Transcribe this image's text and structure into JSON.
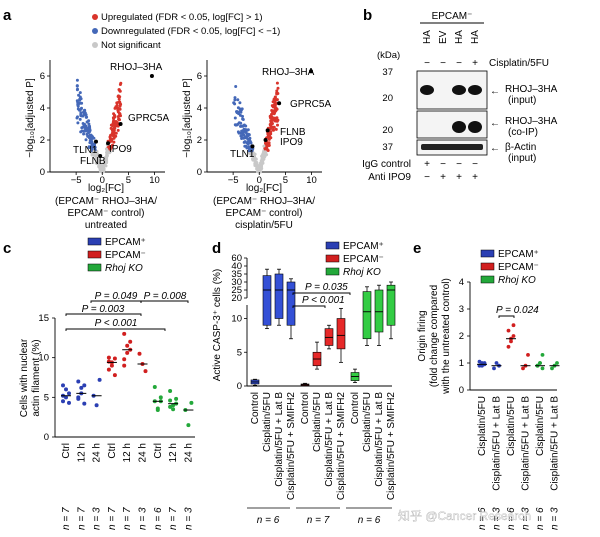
{
  "panels": {
    "a": "a",
    "b": "b",
    "c": "c",
    "d": "d",
    "e": "e"
  },
  "colors": {
    "up": "#d9342b",
    "down": "#4468b8",
    "ns": "#c8c8c8",
    "epcam_pos": "#2b3fb3",
    "epcam_neg": "#d11f1f",
    "rhoj_ko": "#23a83a",
    "box_blue": "#3450d6",
    "box_red": "#e62828",
    "box_green": "#33cc44"
  },
  "panel_a": {
    "legend": {
      "up": "Upregulated (FDR < 0.05, log[FC] > 1)",
      "down": "Downregulated (FDR < 0.05, log[FC] < −1)",
      "ns": "Not significant"
    },
    "ylabel": "−log₁₀[adjusted P]",
    "xlabel": "log₂[FC]",
    "plot1": {
      "xticks": [
        "−5",
        "0",
        "5",
        "10"
      ],
      "yticks": [
        "0",
        "2",
        "4",
        "6"
      ],
      "caption_l1": "(EPCAM⁻ RHOJ–3HA/",
      "caption_l2": "EPCAM⁻ control)",
      "caption_l3": "untreated",
      "gene_labels": {
        "rhoj": "RHOJ–3HA",
        "gprc5a": "GPRC5A",
        "tln1": "TLN1",
        "ipo9": "IPO9",
        "flnb": "FLNB"
      }
    },
    "plot2": {
      "xticks": [
        "−5",
        "0",
        "5",
        "10"
      ],
      "yticks": [
        "0",
        "2",
        "4",
        "6"
      ],
      "caption_l1": "(EPCAM⁻ RHOJ–3HA/",
      "caption_l2": "EPCAM⁻ control)",
      "caption_l3": "cisplatin/5FU",
      "gene_labels": {
        "rhoj": "RHOJ–3HA",
        "gprc5a": "GPRC5A",
        "flnb": "FLNB",
        "ipo9": "IPO9",
        "tln1": "TLN1"
      }
    }
  },
  "panel_b": {
    "header": "EPCAM⁻",
    "lanes": [
      "HA",
      "EV",
      "HA",
      "HA"
    ],
    "cisplatin_signs": [
      "−",
      "−",
      "−",
      "+"
    ],
    "cisplatin_label": "Cisplatin/5FU",
    "kda_label": "(kDa)",
    "mw": {
      "m37a": "37",
      "m20a": "20",
      "m20b": "20",
      "m37b": "37"
    },
    "band_labels": {
      "rhoj_in_1": "RHOJ–3HA",
      "rhoj_in_2": "(input)",
      "rhoj_co_1": "RHOJ–3HA",
      "rhoj_co_2": "(co-IP)",
      "actin_1": "β-Actin",
      "actin_2": "(input)"
    },
    "bottom_rows": [
      {
        "label": "IgG control",
        "signs": [
          "+",
          "−",
          "−",
          "−"
        ]
      },
      {
        "label": "Anti IPO9",
        "signs": [
          "−",
          "+",
          "+",
          "+"
        ]
      }
    ]
  },
  "panel_c": {
    "legend": [
      "EPCAM⁺",
      "EPCAM⁻",
      "Rhoj KO"
    ],
    "ylabel_l1": "Cells with nuclear",
    "ylabel_l2": "actin filament (%)",
    "yticks": [
      "0",
      "5",
      "10",
      "15"
    ],
    "pvals": [
      "P = 0.049",
      "P = 0.008",
      "P = 0.003",
      "P < 0.001"
    ],
    "xcats": [
      "Ctrl",
      "12 h",
      "24 h",
      "Ctrl",
      "12 h",
      "24 h",
      "Ctrl",
      "12 h",
      "24 h"
    ],
    "ns": [
      "n = 7",
      "n = 7",
      "n = 3",
      "n = 7",
      "n = 7",
      "n = 3",
      "n = 6",
      "n = 7",
      "n = 3"
    ]
  },
  "panel_d": {
    "legend": [
      "EPCAM⁺",
      "EPCAM⁻",
      "Rhoj KO"
    ],
    "ylabel": "Active CASP-3⁺ cells (%)",
    "yticks_top": [
      "20",
      "25",
      "30",
      "35",
      "40",
      "60"
    ],
    "yticks_bottom": [
      "0",
      "5",
      "10"
    ],
    "pvals": [
      "P = 0.035",
      "P < 0.001"
    ],
    "xcats": [
      "Control",
      "Cisplatin/5FU",
      "Cisplatin/5FU + Lat B",
      "Cisplatin/5FU + SMIFH2"
    ],
    "ns": [
      "n = 6",
      "n = 7",
      "n = 6"
    ]
  },
  "panel_e": {
    "legend": [
      "EPCAM⁺",
      "EPCAM⁻",
      "Rhoj KO"
    ],
    "ylabel_l1": "Origin firing",
    "ylabel_l2": "(fold change compared",
    "ylabel_l3": "with the untreated control)",
    "yticks": [
      "0",
      "1",
      "2",
      "3",
      "4"
    ],
    "pval": "P = 0.024",
    "xcats": [
      "Cisplatin/5FU",
      "Cisplatin/5FU + Lat B",
      "Cisplatin/5FU",
      "Cisplatin/5FU + Lat B",
      "Cisplatin/5FU",
      "Cisplatin/5FU + Lat B"
    ],
    "ns": [
      "n = 6",
      "n = 3",
      "n = 6",
      "n = 3",
      "n = 6",
      "n = 3"
    ]
  },
  "watermark": "知乎 @Cancer Research",
  "chart_data": [
    {
      "type": "scatter",
      "id": "a1",
      "title": "volcano untreated",
      "xlabel": "log₂[FC]",
      "ylabel": "−log₁₀[adjusted P]",
      "xlim": [
        -10,
        12
      ],
      "ylim": [
        0,
        7
      ],
      "highlighted": [
        {
          "gene": "RHOJ–3HA",
          "x": 9.5,
          "y": 6.0
        },
        {
          "gene": "GPRC5A",
          "x": 3.5,
          "y": 3.0
        },
        {
          "gene": "TLN1",
          "x": -1.2,
          "y": 1.9
        },
        {
          "gene": "IPO9",
          "x": 1.1,
          "y": 1.8
        },
        {
          "gene": "FLNB",
          "x": -0.4,
          "y": 1.0
        }
      ]
    },
    {
      "type": "scatter",
      "id": "a2",
      "title": "volcano cisplatin/5FU",
      "xlabel": "log₂[FC]",
      "ylabel": "−log₁₀[adjusted P]",
      "xlim": [
        -10,
        12
      ],
      "ylim": [
        0,
        7
      ],
      "highlighted": [
        {
          "gene": "RHOJ–3HA",
          "x": 9.9,
          "y": 6.3
        },
        {
          "gene": "GPRC5A",
          "x": 3.8,
          "y": 4.3
        },
        {
          "gene": "FLNB",
          "x": 1.6,
          "y": 2.6
        },
        {
          "gene": "IPO9",
          "x": 1.2,
          "y": 2.0
        },
        {
          "gene": "TLN1",
          "x": -1.3,
          "y": 1.6
        }
      ]
    },
    {
      "type": "scatter",
      "id": "c",
      "ylabel": "Cells with nuclear actin filament (%)",
      "ylim": [
        0,
        15
      ],
      "categories": [
        "Ctrl",
        "12 h",
        "24 h",
        "Ctrl",
        "12 h",
        "24 h",
        "Ctrl",
        "12 h",
        "24 h"
      ],
      "groups": [
        "EPCAM⁺",
        "EPCAM⁺",
        "EPCAM⁺",
        "EPCAM⁻",
        "EPCAM⁻",
        "EPCAM⁻",
        "Rhoj KO",
        "Rhoj KO",
        "Rhoj KO"
      ],
      "points": [
        [
          4.5,
          5.0,
          5.5,
          5.2,
          6.0,
          4.3,
          6.5
        ],
        [
          5.0,
          6.2,
          4.2,
          7.0,
          5.5,
          6.5,
          4.8
        ],
        [
          5.2,
          4.0,
          7.2
        ],
        [
          8.5,
          9.4,
          9.9,
          10.0,
          9.0,
          7.8,
          9.5
        ],
        [
          9.8,
          11.5,
          12.0,
          9.0,
          10.6,
          11.0,
          13.0
        ],
        [
          10.5,
          9.2,
          8.3
        ],
        [
          4.5,
          3.6,
          5.0,
          6.3,
          3.4,
          4.5
        ],
        [
          4.6,
          3.5,
          4.8,
          5.8,
          4.0,
          4.2,
          3.8
        ],
        [
          3.4,
          1.5,
          4.3
        ]
      ],
      "medians": [
        5.2,
        5.5,
        5.2,
        9.4,
        11.0,
        9.2,
        4.5,
        4.2,
        3.4
      ]
    },
    {
      "type": "box",
      "id": "d",
      "ylabel": "Active CASP-3⁺ cells (%)",
      "ylim": [
        0,
        60
      ],
      "axis_break": [
        12,
        20
      ],
      "groups": [
        "EPCAM⁺",
        "EPCAM⁻",
        "Rhoj KO"
      ],
      "categories": [
        "Control",
        "Cisplatin/5FU",
        "Cisplatin/5FU + Lat B",
        "Cisplatin/5FU + SMIFH2"
      ],
      "boxes": [
        {
          "group": "EPCAM⁺",
          "cat": "Control",
          "q1": 0.3,
          "median": 0.6,
          "q3": 0.9,
          "min": 0.1,
          "max": 1.0
        },
        {
          "group": "EPCAM⁺",
          "cat": "Cisplatin/5FU",
          "q1": 9,
          "median": 25,
          "q3": 34,
          "min": 8.5,
          "max": 38
        },
        {
          "group": "EPCAM⁺",
          "cat": "Cisplatin/5FU + Lat B",
          "q1": 10,
          "median": 25,
          "q3": 35,
          "min": 9,
          "max": 38
        },
        {
          "group": "EPCAM⁺",
          "cat": "Cisplatin/5FU + SMIFH2",
          "q1": 9,
          "median": 25,
          "q3": 30,
          "min": 7,
          "max": 32
        },
        {
          "group": "EPCAM⁻",
          "cat": "Control",
          "q1": 0.1,
          "median": 0.2,
          "q3": 0.3,
          "min": 0,
          "max": 0.4
        },
        {
          "group": "EPCAM⁻",
          "cat": "Cisplatin/5FU",
          "q1": 3.0,
          "median": 4.0,
          "q3": 5.0,
          "min": 2.5,
          "max": 6.5
        },
        {
          "group": "EPCAM⁻",
          "cat": "Cisplatin/5FU + Lat B",
          "q1": 6.0,
          "median": 7.2,
          "q3": 8.5,
          "min": 5.5,
          "max": 9.0
        },
        {
          "group": "EPCAM⁻",
          "cat": "Cisplatin/5FU + SMIFH2",
          "q1": 5.5,
          "median": 7.5,
          "q3": 10.0,
          "min": 3.5,
          "max": 11.5
        },
        {
          "group": "Rhoj KO",
          "cat": "Control",
          "q1": 0.8,
          "median": 1.4,
          "q3": 2.0,
          "min": 0.5,
          "max": 2.5
        },
        {
          "group": "Rhoj KO",
          "cat": "Cisplatin/5FU",
          "q1": 7.0,
          "median": 11,
          "q3": 24,
          "min": 6,
          "max": 27
        },
        {
          "group": "Rhoj KO",
          "cat": "Cisplatin/5FU + Lat B",
          "q1": 8.0,
          "median": 11,
          "q3": 25,
          "min": 6,
          "max": 28
        },
        {
          "group": "Rhoj KO",
          "cat": "Cisplatin/5FU + SMIFH2",
          "q1": 9.0,
          "median": 25,
          "q3": 28,
          "min": 7,
          "max": 30
        }
      ]
    },
    {
      "type": "scatter",
      "id": "e",
      "ylabel": "Origin firing (fold change compared with the untreated control)",
      "ylim": [
        0,
        4
      ],
      "categories": [
        "Cisplatin/5FU",
        "Cisplatin/5FU + Lat B",
        "Cisplatin/5FU",
        "Cisplatin/5FU + Lat B",
        "Cisplatin/5FU",
        "Cisplatin/5FU + Lat B"
      ],
      "groups": [
        "EPCAM⁺",
        "EPCAM⁺",
        "EPCAM⁻",
        "EPCAM⁻",
        "Rhoj KO",
        "Rhoj KO"
      ],
      "points": [
        [
          0.9,
          1.0,
          0.95,
          1.05,
          0.9,
          1.0
        ],
        [
          0.8,
          1.0,
          0.9
        ],
        [
          1.6,
          1.8,
          2.0,
          2.2,
          1.9,
          2.4
        ],
        [
          0.8,
          0.9,
          1.3
        ],
        [
          0.9,
          1.0,
          0.8,
          0.9,
          1.0,
          1.3
        ],
        [
          0.8,
          0.9,
          1.0
        ]
      ],
      "medians": [
        0.95,
        0.9,
        1.9,
        0.9,
        0.9,
        0.9
      ]
    }
  ]
}
